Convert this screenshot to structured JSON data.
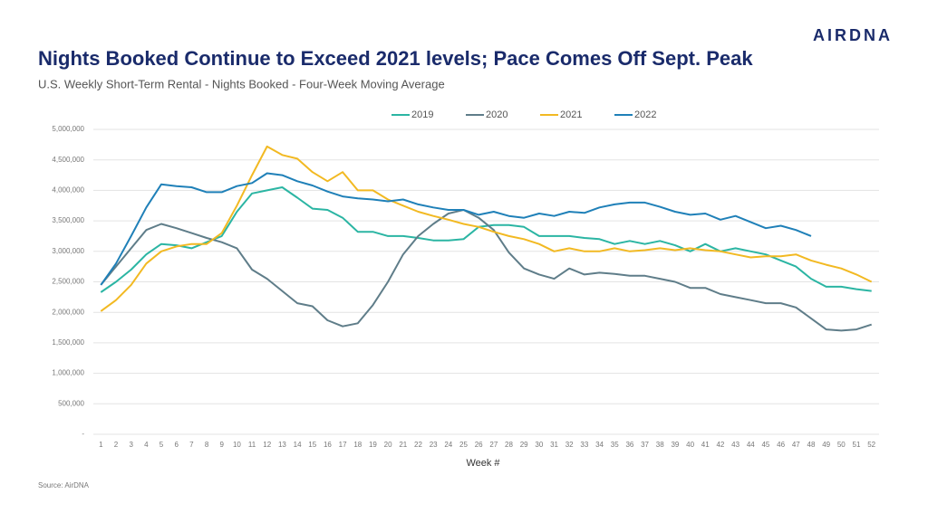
{
  "brand": "AIRDNA",
  "chart_data": {
    "type": "line",
    "title": "Nights Booked Continue to Exceed 2021 levels; Pace Comes Off Sept. Peak",
    "subtitle": "U.S. Weekly Short-Term Rental - Nights Booked - Four-Week Moving Average",
    "x_label": "Week #",
    "source": "Source: AirDNA",
    "legend": "top",
    "grid": true,
    "categories": [
      "1",
      "2",
      "3",
      "4",
      "5",
      "6",
      "7",
      "8",
      "9",
      "10",
      "11",
      "12",
      "13",
      "14",
      "15",
      "16",
      "17",
      "18",
      "19",
      "20",
      "21",
      "22",
      "23",
      "24",
      "25",
      "26",
      "27",
      "28",
      "29",
      "30",
      "31",
      "32",
      "33",
      "34",
      "35",
      "36",
      "37",
      "38",
      "39",
      "40",
      "41",
      "42",
      "43",
      "44",
      "45",
      "46",
      "47",
      "48",
      "49",
      "50",
      "51",
      "52"
    ],
    "ylim": [
      0,
      5000000
    ],
    "yticks": [
      {
        "value": 0,
        "label": "-"
      },
      {
        "value": 500000,
        "label": "500,000"
      },
      {
        "value": 1000000,
        "label": "1,000,000"
      },
      {
        "value": 1500000,
        "label": "1,500,000"
      },
      {
        "value": 2000000,
        "label": "2,000,000"
      },
      {
        "value": 2500000,
        "label": "2,500,000"
      },
      {
        "value": 3000000,
        "label": "3,000,000"
      },
      {
        "value": 3500000,
        "label": "3,500,000"
      },
      {
        "value": 4000000,
        "label": "4,000,000"
      },
      {
        "value": 4500000,
        "label": "4,500,000"
      },
      {
        "value": 5000000,
        "label": "5,000,000"
      }
    ],
    "series": [
      {
        "name": "2019",
        "color": "#2bb5a3",
        "values": [
          2330000,
          2500000,
          2700000,
          2950000,
          3120000,
          3100000,
          3050000,
          3150000,
          3250000,
          3650000,
          3950000,
          4000000,
          4050000,
          3880000,
          3700000,
          3680000,
          3550000,
          3320000,
          3320000,
          3250000,
          3250000,
          3220000,
          3180000,
          3180000,
          3200000,
          3400000,
          3430000,
          3430000,
          3400000,
          3250000,
          3250000,
          3250000,
          3220000,
          3200000,
          3120000,
          3170000,
          3120000,
          3170000,
          3100000,
          3000000,
          3120000,
          3000000,
          3050000,
          3000000,
          2950000,
          2850000,
          2750000,
          2550000,
          2420000,
          2420000,
          2380000,
          2350000
        ]
      },
      {
        "name": "2020",
        "color": "#5f7d89",
        "values": [
          2450000,
          2750000,
          3050000,
          3350000,
          3450000,
          3380000,
          3300000,
          3220000,
          3150000,
          3050000,
          2700000,
          2550000,
          2350000,
          2150000,
          2100000,
          1870000,
          1770000,
          1820000,
          2120000,
          2500000,
          2950000,
          3250000,
          3450000,
          3620000,
          3680000,
          3550000,
          3350000,
          2980000,
          2720000,
          2620000,
          2550000,
          2720000,
          2620000,
          2650000,
          2630000,
          2600000,
          2600000,
          2550000,
          2500000,
          2400000,
          2400000,
          2300000,
          2250000,
          2200000,
          2150000,
          2150000,
          2080000,
          1900000,
          1720000,
          1700000,
          1720000,
          1800000
        ]
      },
      {
        "name": "2021",
        "color": "#f2b922",
        "values": [
          2020000,
          2200000,
          2450000,
          2800000,
          3000000,
          3080000,
          3120000,
          3120000,
          3300000,
          3750000,
          4250000,
          4720000,
          4580000,
          4520000,
          4300000,
          4150000,
          4300000,
          4000000,
          4000000,
          3850000,
          3750000,
          3650000,
          3580000,
          3520000,
          3450000,
          3400000,
          3320000,
          3250000,
          3200000,
          3120000,
          3000000,
          3050000,
          3000000,
          3000000,
          3050000,
          3000000,
          3020000,
          3050000,
          3020000,
          3050000,
          3020000,
          3000000,
          2950000,
          2900000,
          2920000,
          2920000,
          2950000,
          2850000,
          2780000,
          2720000,
          2620000,
          2500000
        ]
      },
      {
        "name": "2022",
        "color": "#1f80b8",
        "values": [
          2450000,
          2800000,
          3250000,
          3720000,
          4100000,
          4070000,
          4050000,
          3970000,
          3970000,
          4070000,
          4120000,
          4280000,
          4250000,
          4150000,
          4080000,
          3980000,
          3900000,
          3870000,
          3850000,
          3820000,
          3850000,
          3770000,
          3720000,
          3680000,
          3680000,
          3600000,
          3650000,
          3580000,
          3550000,
          3620000,
          3580000,
          3650000,
          3630000,
          3720000,
          3770000,
          3800000,
          3800000,
          3730000,
          3650000,
          3600000,
          3620000,
          3520000,
          3580000,
          3480000,
          3380000,
          3420000,
          3350000,
          3250000,
          null,
          null,
          null,
          null
        ]
      }
    ]
  }
}
